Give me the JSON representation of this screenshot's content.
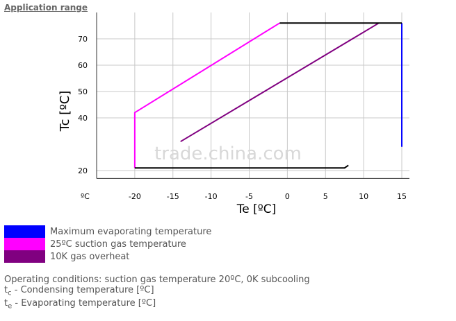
{
  "header": {
    "title": "Application range"
  },
  "chart_data": {
    "type": "line",
    "xlabel": "Te [ºC]",
    "ylabel": "Tc [ºC]",
    "x_unit": "ºC",
    "watermark": "trade.china.com",
    "xlim": [
      -25,
      16
    ],
    "xticks": [
      -20,
      -15,
      -10,
      -5,
      0,
      5,
      10,
      15
    ],
    "ylim": [
      17,
      80
    ],
    "yticks": [
      20,
      40,
      50,
      60,
      70
    ],
    "grid": true,
    "series": [
      {
        "name": "Maximum evaporating temperature",
        "color": "#0000ff",
        "x": [
          15,
          15
        ],
        "values": [
          76,
          29
        ]
      },
      {
        "name": "25ºC suction gas temperature",
        "color": "#ff00ff",
        "x": [
          -20,
          -20,
          -1
        ],
        "values": [
          21,
          42,
          76
        ]
      },
      {
        "name": "10K gas overheat",
        "color": "#800080",
        "x": [
          -14,
          12
        ],
        "values": [
          31,
          76
        ]
      },
      {
        "color": "#000000",
        "x": [
          -1,
          15
        ],
        "values": [
          76,
          76
        ]
      },
      {
        "color": "#000000",
        "x": [
          -20,
          7.5,
          8
        ],
        "values": [
          21,
          21,
          22
        ]
      }
    ]
  },
  "notes": {
    "conditions": "Operating conditions: suction gas temperature 20ºC, 0K subcooling",
    "tc": {
      "symbol": "t",
      "sub": "c",
      "text": " - Condensing temperature [ºC]"
    },
    "te": {
      "symbol": "t",
      "sub": "e",
      "text": " - Evaporating temperature [ºC]"
    }
  }
}
